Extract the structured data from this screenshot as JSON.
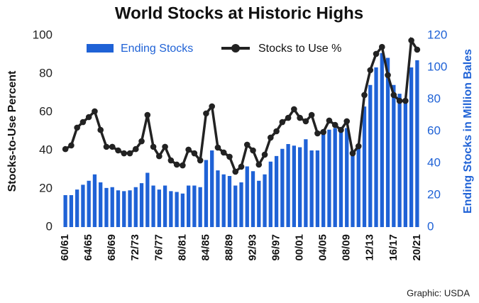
{
  "chart_data": {
    "type": "bar",
    "title": "World Stocks at Historic Highs",
    "ylabel": "Stocks-to-Use Percent",
    "y2label": "Ending Stocks in Million Bales",
    "source": "Graphic: USDA",
    "categories": [
      "60/61",
      null,
      null,
      null,
      "64/65",
      null,
      null,
      null,
      "68/69",
      null,
      null,
      null,
      "72/73",
      null,
      null,
      null,
      "76/77",
      null,
      null,
      null,
      "80/81",
      null,
      null,
      null,
      "84/85",
      null,
      null,
      null,
      "88/89",
      null,
      null,
      null,
      "92/93",
      null,
      null,
      null,
      "96/97",
      null,
      null,
      null,
      "00/01",
      null,
      null,
      null,
      "04/05",
      null,
      null,
      null,
      "08/09",
      null,
      null,
      null,
      "12/13",
      null,
      null,
      null,
      "16/17",
      null,
      null,
      null,
      "20/21"
    ],
    "series": [
      {
        "name": "Ending Stocks",
        "type": "bar",
        "axis": "y2",
        "color": "#1f62d6",
        "values": [
          20,
          20,
          23.5,
          26.5,
          29,
          33,
          28,
          24.5,
          25,
          23,
          22.5,
          23,
          25,
          27.5,
          34,
          26,
          23.5,
          26,
          22.5,
          22,
          21,
          26,
          26,
          25,
          42,
          48,
          35.5,
          33,
          32,
          26,
          28,
          38,
          35,
          29,
          33,
          41,
          44.5,
          49,
          52,
          51,
          50,
          55,
          48,
          48,
          61,
          61,
          62,
          59.5,
          62,
          48,
          51,
          75.5,
          89,
          100,
          109,
          106,
          89,
          83.5,
          78,
          100,
          104.5
        ]
      },
      {
        "name": "Stocks to Use %",
        "type": "line",
        "color": "#222222",
        "values": [
          40.7,
          42.6,
          51.9,
          54.8,
          57.4,
          60.4,
          50.7,
          41.9,
          41.9,
          40,
          38.5,
          38.5,
          40.7,
          44.8,
          58.5,
          41.9,
          37,
          41.9,
          34.8,
          32.6,
          32.2,
          40.4,
          38.5,
          34.8,
          59.3,
          63,
          41.5,
          38.9,
          36.7,
          28.9,
          31.5,
          43,
          40,
          32.6,
          37.8,
          46.7,
          50,
          54.8,
          57,
          61.5,
          57,
          55.2,
          58.5,
          48.9,
          49.6,
          55.6,
          53.3,
          50.7,
          55.2,
          38.5,
          42.2,
          68.9,
          81.9,
          90.4,
          94,
          79.3,
          68.9,
          65.9,
          65.9,
          97.4,
          92.6
        ]
      }
    ],
    "ylim": [
      0,
      100
    ],
    "yticks": [
      0,
      20,
      40,
      60,
      80,
      100
    ],
    "y2lim": [
      0,
      120
    ],
    "y2ticks": [
      0,
      20,
      40,
      60,
      80,
      100,
      120
    ],
    "y2color": "#1f62d6",
    "grid": false
  }
}
